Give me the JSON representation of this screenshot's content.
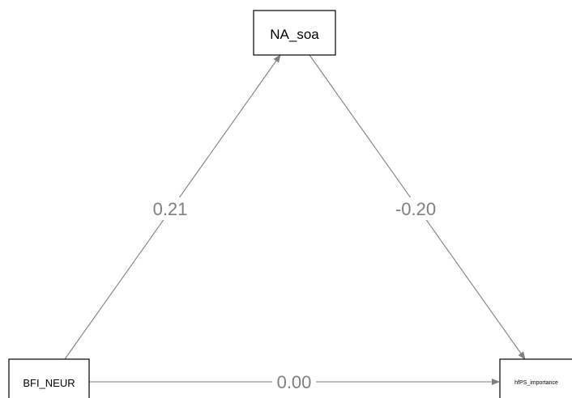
{
  "diagram": {
    "nodes": {
      "mediator": {
        "label": "NA_soa"
      },
      "predictor": {
        "label": "BFI_NEUR"
      },
      "outcome": {
        "label": "hfPS_importance"
      }
    },
    "paths": {
      "a": {
        "from": "predictor",
        "to": "mediator",
        "coefficient": "0.21"
      },
      "b": {
        "from": "mediator",
        "to": "outcome",
        "coefficient": "-0.20"
      },
      "c": {
        "from": "predictor",
        "to": "outcome",
        "coefficient": "0.00"
      }
    },
    "colors": {
      "edge": "#808080",
      "node_border": "#000000",
      "node_text": "#000000",
      "background": "#ffffff"
    }
  }
}
